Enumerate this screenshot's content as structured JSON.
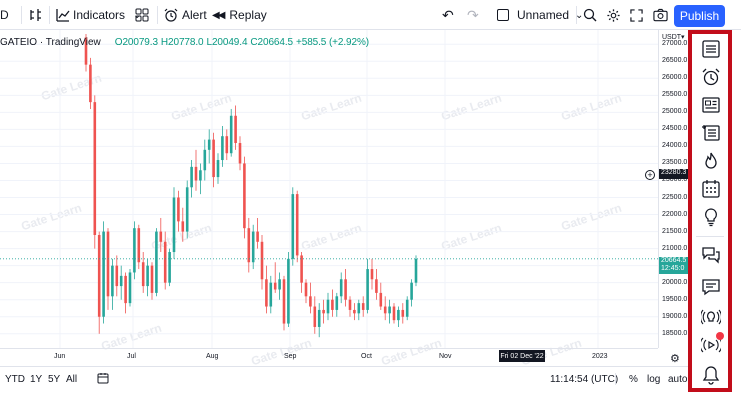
{
  "toolbar": {
    "symbol_tail": "D",
    "indicators_label": "Indicators",
    "alert_label": "Alert",
    "replay_label": "Replay",
    "layout_name": "Unnamed",
    "publish_label": "Publish"
  },
  "legend": {
    "symbol": "GATEIO · TradingView",
    "open": "O20079.3",
    "high": "H20778.0",
    "low": "L20049.4",
    "close": "C20664.5",
    "change": "+585.5 (+2.92%)"
  },
  "price_axis": {
    "currency": "USDT▾",
    "ticks": [
      "27000.0",
      "26500.0",
      "26000.0",
      "25500.0",
      "25000.0",
      "24500.0",
      "24000.0",
      "23500.0",
      "23000.0",
      "22500.0",
      "22000.0",
      "21500.0",
      "21000.0",
      "20500.0",
      "20000.0",
      "19500.0",
      "19000.0",
      "18500.0"
    ],
    "crosshair_label": "23280.3",
    "last_price": "20664.5",
    "countdown": "12:45:0"
  },
  "time_axis": {
    "ticks": [
      "Jun",
      "Jul",
      "Aug",
      "Sep",
      "Oct",
      "Nov",
      "2023"
    ],
    "cursor_date": "Fri 02 Dec '22"
  },
  "bottom": {
    "ranges": [
      "YTD",
      "1Y",
      "5Y",
      "All"
    ],
    "clock": "11:14:54 (UTC)",
    "percent": "%",
    "log": "log",
    "auto": "auto"
  },
  "watermark": "Gate Learn",
  "colors": {
    "up": "#26a69a",
    "down": "#ef5350",
    "accent": "#2962ff",
    "highlight": "#c20d1a"
  },
  "chart_data": {
    "type": "candlestick",
    "title": "",
    "ylim": [
      18200,
      27300
    ],
    "x_labels": [
      "Jun",
      "Jul",
      "Aug",
      "Sep",
      "Oct",
      "Nov",
      "2023"
    ],
    "candles": [
      [
        27200,
        27300,
        26200,
        26400
      ],
      [
        26400,
        26600,
        25100,
        25300
      ],
      [
        25300,
        25500,
        21000,
        21400
      ],
      [
        21400,
        21500,
        18500,
        19000
      ],
      [
        19000,
        21800,
        18800,
        21500
      ],
      [
        21500,
        21600,
        19200,
        19600
      ],
      [
        19600,
        20700,
        19200,
        20500
      ],
      [
        20500,
        20800,
        19600,
        19900
      ],
      [
        19900,
        20500,
        19500,
        20200
      ],
      [
        20200,
        20300,
        19100,
        19400
      ],
      [
        19400,
        20400,
        19300,
        20300
      ],
      [
        20300,
        21800,
        20100,
        21600
      ],
      [
        21600,
        21700,
        20400,
        20600
      ],
      [
        20600,
        20900,
        19700,
        19900
      ],
      [
        19900,
        20700,
        19600,
        20500
      ],
      [
        20500,
        20600,
        19500,
        19700
      ],
      [
        19700,
        21600,
        19600,
        21500
      ],
      [
        21500,
        21900,
        20900,
        21200
      ],
      [
        21200,
        21500,
        19800,
        20000
      ],
      [
        20000,
        21000,
        19900,
        20900
      ],
      [
        20900,
        22800,
        20700,
        22500
      ],
      [
        22500,
        22700,
        21500,
        21800
      ],
      [
        21800,
        22200,
        21200,
        21500
      ],
      [
        21500,
        23000,
        21300,
        22800
      ],
      [
        22800,
        23600,
        22500,
        23400
      ],
      [
        23400,
        23900,
        22700,
        23000
      ],
      [
        23000,
        23500,
        22600,
        23300
      ],
      [
        23300,
        24200,
        23000,
        23900
      ],
      [
        23900,
        24500,
        23500,
        24200
      ],
      [
        24200,
        24400,
        22800,
        23100
      ],
      [
        23100,
        23800,
        22900,
        23600
      ],
      [
        23600,
        24600,
        23400,
        24300
      ],
      [
        24300,
        24500,
        23600,
        23800
      ],
      [
        23800,
        25100,
        23700,
        24900
      ],
      [
        24900,
        25200,
        23900,
        24100
      ],
      [
        24100,
        24300,
        23300,
        23500
      ],
      [
        23500,
        23700,
        21300,
        21600
      ],
      [
        21600,
        21900,
        20300,
        20600
      ],
      [
        20600,
        21700,
        20400,
        21500
      ],
      [
        21500,
        21900,
        21000,
        21200
      ],
      [
        21200,
        21400,
        19800,
        20100
      ],
      [
        20100,
        20500,
        19100,
        19300
      ],
      [
        19300,
        20200,
        19100,
        20000
      ],
      [
        20000,
        20600,
        19700,
        19800
      ],
      [
        19800,
        20300,
        19500,
        20100
      ],
      [
        20100,
        20200,
        18600,
        18800
      ],
      [
        18800,
        20900,
        18700,
        20700
      ],
      [
        20700,
        22800,
        20500,
        22600
      ],
      [
        22600,
        22700,
        20600,
        20800
      ],
      [
        20800,
        20900,
        19700,
        20000
      ],
      [
        20000,
        20100,
        19400,
        19600
      ],
      [
        19600,
        20000,
        19100,
        19300
      ],
      [
        19300,
        19600,
        18500,
        18700
      ],
      [
        18700,
        19400,
        18400,
        19200
      ],
      [
        19200,
        19500,
        18800,
        19100
      ],
      [
        19100,
        19700,
        18900,
        19500
      ],
      [
        19500,
        19800,
        19000,
        19200
      ],
      [
        19200,
        19700,
        19000,
        19600
      ],
      [
        19600,
        20300,
        19400,
        20100
      ],
      [
        20100,
        20400,
        19300,
        19500
      ],
      [
        19500,
        19600,
        19000,
        19200
      ],
      [
        19200,
        19400,
        18900,
        19100
      ],
      [
        19100,
        19500,
        18900,
        19400
      ],
      [
        19400,
        19600,
        19000,
        19200
      ],
      [
        19200,
        20700,
        19100,
        20400
      ],
      [
        20400,
        20700,
        19800,
        20100
      ],
      [
        20100,
        20400,
        19500,
        19700
      ],
      [
        19700,
        20000,
        19200,
        19300
      ],
      [
        19300,
        19600,
        18900,
        19100
      ],
      [
        19100,
        19500,
        18800,
        19300
      ],
      [
        19300,
        19400,
        18800,
        18900
      ],
      [
        18900,
        19300,
        18700,
        19200
      ],
      [
        19200,
        19400,
        18800,
        19000
      ],
      [
        19000,
        19600,
        18900,
        19500
      ],
      [
        19500,
        20100,
        19300,
        20000
      ],
      [
        20000,
        20800,
        19900,
        20700
      ]
    ]
  }
}
